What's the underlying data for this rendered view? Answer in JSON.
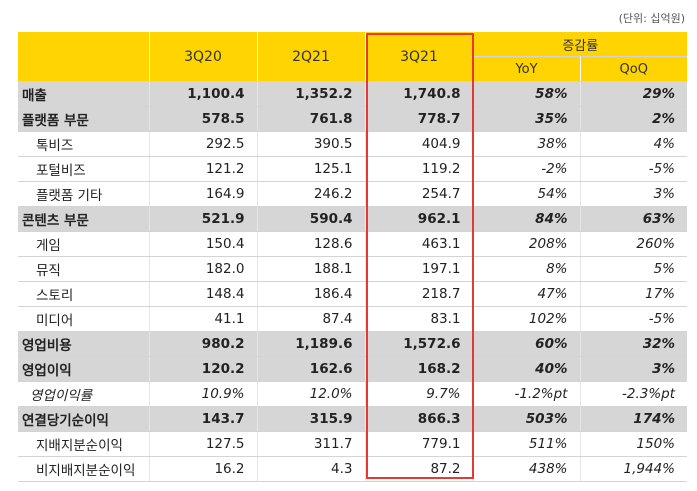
{
  "unit_note": "(단위: 십억원)",
  "header": {
    "periods": [
      "3Q20",
      "2Q21",
      "3Q21"
    ],
    "growth_label": "증감률",
    "growth_cols": [
      "YoY",
      "QoQ"
    ]
  },
  "highlight_column": "3Q21",
  "rows": [
    {
      "label": "매출",
      "values": [
        "1,100.4",
        "1,352.2",
        "1,740.8"
      ],
      "yoy": "58%",
      "qoq": "29%",
      "style": "bold"
    },
    {
      "label": "플랫폼 부문",
      "values": [
        "578.5",
        "761.8",
        "778.7"
      ],
      "yoy": "35%",
      "qoq": "2%",
      "style": "bold"
    },
    {
      "label": "톡비즈",
      "values": [
        "292.5",
        "390.5",
        "404.9"
      ],
      "yoy": "38%",
      "qoq": "4%",
      "style": "sub"
    },
    {
      "label": "포털비즈",
      "values": [
        "121.2",
        "125.1",
        "119.2"
      ],
      "yoy": "-2%",
      "qoq": "-5%",
      "style": "sub"
    },
    {
      "label": "플랫폼 기타",
      "values": [
        "164.9",
        "246.2",
        "254.7"
      ],
      "yoy": "54%",
      "qoq": "3%",
      "style": "sub"
    },
    {
      "label": "콘텐츠 부문",
      "values": [
        "521.9",
        "590.4",
        "962.1"
      ],
      "yoy": "84%",
      "qoq": "63%",
      "style": "bold"
    },
    {
      "label": "게임",
      "values": [
        "150.4",
        "128.6",
        "463.1"
      ],
      "yoy": "208%",
      "qoq": "260%",
      "style": "sub"
    },
    {
      "label": "뮤직",
      "values": [
        "182.0",
        "188.1",
        "197.1"
      ],
      "yoy": "8%",
      "qoq": "5%",
      "style": "sub"
    },
    {
      "label": "스토리",
      "values": [
        "148.4",
        "186.4",
        "218.7"
      ],
      "yoy": "47%",
      "qoq": "17%",
      "style": "sub"
    },
    {
      "label": "미디어",
      "values": [
        "41.1",
        "87.4",
        "83.1"
      ],
      "yoy": "102%",
      "qoq": "-5%",
      "style": "sub"
    },
    {
      "label": "영업비용",
      "values": [
        "980.2",
        "1,189.6",
        "1,572.6"
      ],
      "yoy": "60%",
      "qoq": "32%",
      "style": "bold"
    },
    {
      "label": "영업이익",
      "values": [
        "120.2",
        "162.6",
        "168.2"
      ],
      "yoy": "40%",
      "qoq": "3%",
      "style": "bold"
    },
    {
      "label": "영업이익률",
      "values": [
        "10.9%",
        "12.0%",
        "9.7%"
      ],
      "yoy": "-1.2%pt",
      "qoq": "-2.3%pt",
      "style": "ital"
    },
    {
      "label": "연결당기순이익",
      "values": [
        "143.7",
        "315.9",
        "866.3"
      ],
      "yoy": "503%",
      "qoq": "174%",
      "style": "bold"
    },
    {
      "label": "지배지분순이익",
      "values": [
        "127.5",
        "311.7",
        "779.1"
      ],
      "yoy": "511%",
      "qoq": "150%",
      "style": "sub"
    },
    {
      "label": "비지배지분순이익",
      "values": [
        "16.2",
        "4.3",
        "87.2"
      ],
      "yoy": "438%",
      "qoq": "1,944%",
      "style": "sub"
    }
  ]
}
